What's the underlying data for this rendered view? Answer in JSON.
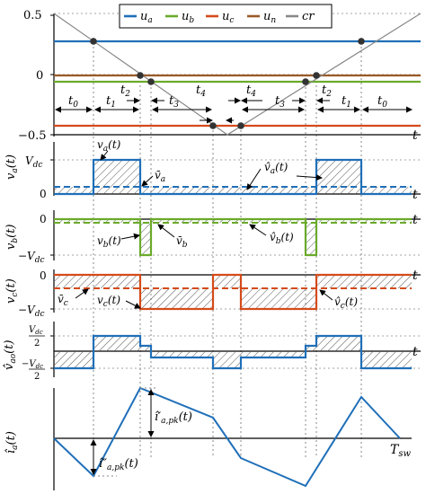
{
  "colors": {
    "ua": "#1f6fb8",
    "ub": "#6aaa2a",
    "uc": "#d44b1a",
    "un": "#9a5a28",
    "cr": "#888888",
    "axis": "#000000",
    "grid": "#888888",
    "hatch": "#555555"
  },
  "panel1": {
    "yticks": [
      "0.5",
      "0",
      "−0.5"
    ],
    "legend": [
      {
        "key": "ua",
        "sym": "u",
        "sub": "a"
      },
      {
        "key": "ub",
        "sym": "u",
        "sub": "b"
      },
      {
        "key": "uc",
        "sym": "u",
        "sub": "c"
      },
      {
        "key": "un",
        "sym": "u",
        "sub": "n"
      },
      {
        "key": "cr",
        "sym": "cr",
        "sub": ""
      }
    ],
    "intervals": [
      {
        "sym": "t",
        "sub": "0"
      },
      {
        "sym": "t",
        "sub": "1"
      },
      {
        "sym": "t",
        "sub": "2"
      },
      {
        "sym": "t",
        "sub": "3"
      },
      {
        "sym": "t",
        "sub": "4"
      },
      {
        "sym": "t",
        "sub": "4"
      },
      {
        "sym": "t",
        "sub": "3"
      },
      {
        "sym": "t",
        "sub": "2"
      },
      {
        "sym": "t",
        "sub": "1"
      },
      {
        "sym": "t",
        "sub": "0"
      }
    ],
    "t_label": "t"
  },
  "panel2": {
    "ylabel": "v_a(t)",
    "ytick_top": "V_dc",
    "ytick_bottom": "0",
    "ann_inst": "v_a(t)",
    "ann_avg": "v̄_a",
    "ann_hat": "v̂_a(t)",
    "t_label": "t"
  },
  "panel3": {
    "ylabel": "v_b(t)",
    "ytick_top": "0",
    "ytick_bottom": "−V_dc",
    "ann_inst": "v_b(t)",
    "ann_avg": "v̄_b",
    "ann_hat": "v̂_b(t)",
    "t_label": "t"
  },
  "panel4": {
    "ylabel": "v_c(t)",
    "ytick_top": "0",
    "ytick_bottom": "−V_dc",
    "ann_inst": "v_c(t)",
    "ann_avg": "v̄_c",
    "ann_hat": "v̂_c(t)",
    "t_label": "t"
  },
  "panel5": {
    "ylabel": "v̂_ao(t)",
    "ytick_top": "V_dc/2",
    "ytick_bottom": "−V_dc/2",
    "t_label": "t"
  },
  "panel6": {
    "ylabel": "î_a(t)",
    "ann_pk1": "î′_a,pk(t)",
    "ann_pk2": "î″_a,pk(t)",
    "t_label": "T_sw"
  }
}
